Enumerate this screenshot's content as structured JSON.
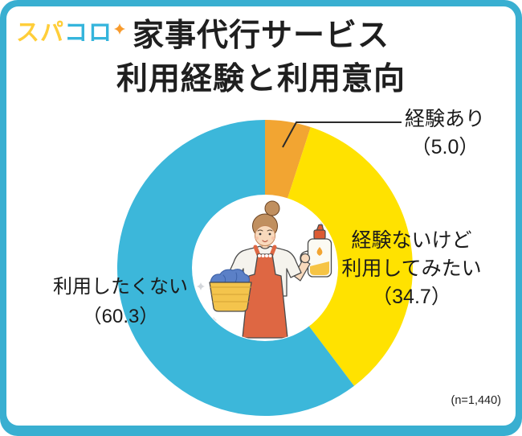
{
  "frame": {
    "border_color": "#39AFD1",
    "card_background": "#FFFFFF"
  },
  "logo": {
    "part1": "スパ",
    "part2": "コロ",
    "part1_color": "#FFCE3A",
    "part2_color": "#35B5DC",
    "sparkle_icon_color": "#F89B2D"
  },
  "title": {
    "line1": "家事代行サービス",
    "line2": "利用経験と利用意向"
  },
  "chart_data": {
    "type": "pie",
    "donut": true,
    "title": "家事代行サービス 利用経験と利用意向",
    "categories": [
      "経験あり",
      "経験ないけど利用してみたい",
      "利用したくない"
    ],
    "values": [
      5.0,
      34.7,
      60.3
    ],
    "unit": "percent",
    "colors": [
      "#F2A532",
      "#FFE200",
      "#3CB7DA"
    ],
    "start_angle": "12-o-clock, clockwise",
    "legend_position": "none (direct labels with leader line on smallest slice)",
    "labels": {
      "experience": {
        "line1": "経験あり",
        "line2": "（5.0）"
      },
      "want_to_try": {
        "line1": "経験ないけど",
        "line2": "利用してみたい",
        "line3": "（34.7）"
      },
      "not_want": {
        "line1": "利用したくない",
        "line2": "（60.3）"
      }
    },
    "center_illustration": "housewife-with-laundry-basket-and-detergent-bottle",
    "sample_size_note": "(n=1,440)"
  }
}
